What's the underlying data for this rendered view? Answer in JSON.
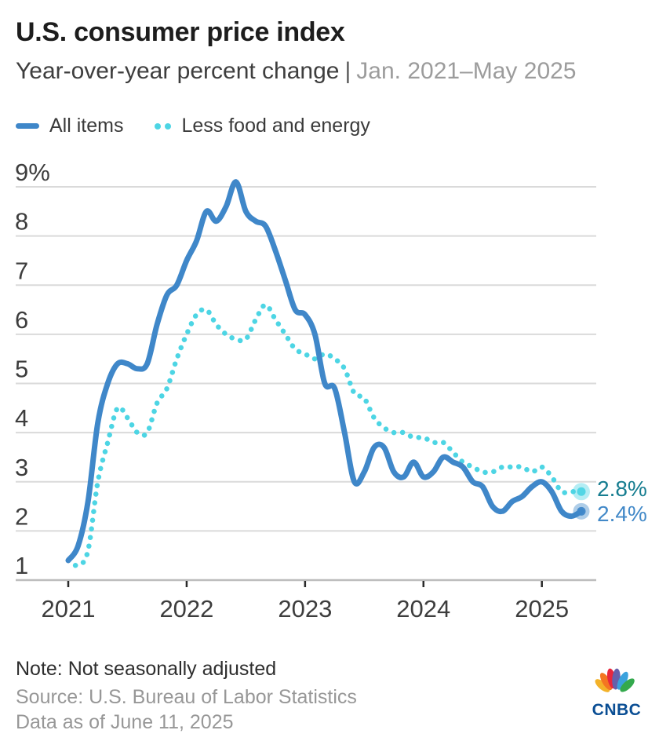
{
  "header": {
    "title": "U.S. consumer price index",
    "subtitle_main": "Year-over-year percent change",
    "subtitle_sep": "|",
    "subtitle_range": "Jan. 2021–May 2025"
  },
  "legend": {
    "items": [
      {
        "label": "All items",
        "color": "#3f87c9",
        "style": "solid"
      },
      {
        "label": "Less food and energy",
        "color": "#4dd5e4",
        "style": "dotted"
      }
    ]
  },
  "chart_data": {
    "type": "line",
    "title": "U.S. consumer price index",
    "subtitle": "Year-over-year percent change",
    "x_start": "Jan. 2021",
    "x_end": "May 2025",
    "frequency": "monthly",
    "x_tick_labels": [
      "2021",
      "2022",
      "2023",
      "2024",
      "2025"
    ],
    "y_tick_labels": [
      "9%",
      "8",
      "7",
      "6",
      "5",
      "4",
      "3",
      "2",
      "1"
    ],
    "ylim": [
      1,
      9
    ],
    "grid": "horizontal",
    "legend_position": "top-left",
    "series": [
      {
        "name": "All items",
        "color": "#3f87c9",
        "line_style": "solid",
        "end_label": "2.4%",
        "end_label_color": "#4289c8",
        "values": [
          1.4,
          1.7,
          2.6,
          4.2,
          5.0,
          5.4,
          5.4,
          5.3,
          5.4,
          6.2,
          6.8,
          7.0,
          7.5,
          7.9,
          8.5,
          8.3,
          8.6,
          9.1,
          8.5,
          8.3,
          8.2,
          7.7,
          7.1,
          6.5,
          6.4,
          6.0,
          5.0,
          4.9,
          4.0,
          3.0,
          3.2,
          3.7,
          3.7,
          3.2,
          3.1,
          3.4,
          3.1,
          3.2,
          3.5,
          3.4,
          3.3,
          3.0,
          2.9,
          2.5,
          2.4,
          2.6,
          2.7,
          2.9,
          3.0,
          2.8,
          2.4,
          2.3,
          2.4
        ]
      },
      {
        "name": "Less food and energy",
        "color": "#4dd5e4",
        "line_style": "dotted",
        "end_label": "2.8%",
        "end_label_color": "#167d90",
        "values": [
          1.4,
          1.3,
          1.6,
          3.0,
          3.8,
          4.5,
          4.3,
          4.0,
          4.0,
          4.6,
          4.9,
          5.5,
          6.0,
          6.4,
          6.5,
          6.2,
          6.0,
          5.9,
          5.9,
          6.3,
          6.6,
          6.3,
          6.0,
          5.7,
          5.6,
          5.5,
          5.6,
          5.5,
          5.3,
          4.8,
          4.7,
          4.3,
          4.1,
          4.0,
          4.0,
          3.9,
          3.9,
          3.8,
          3.8,
          3.6,
          3.4,
          3.3,
          3.2,
          3.2,
          3.3,
          3.3,
          3.3,
          3.2,
          3.3,
          3.1,
          2.8,
          2.8,
          2.8
        ]
      }
    ]
  },
  "footer": {
    "note": "Note: Not seasonally adjusted",
    "source": "Source: U.S. Bureau of Labor Statistics",
    "as_of": "Data as of June 11, 2025",
    "logo_text": "CNBC"
  }
}
